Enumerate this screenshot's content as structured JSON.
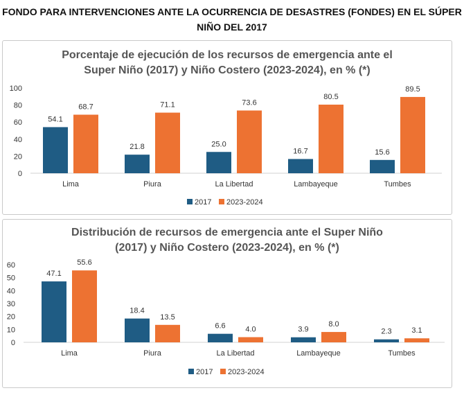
{
  "header": {
    "title_line1": "FONDO PARA INTERVENCIONES ANTE LA OCURRENCIA DE DESASTRES (FONDES) EN EL SÚPER",
    "title_line2": "NIÑO DEL 2017"
  },
  "colors": {
    "series_2017": "#1f5c84",
    "series_2023_2024": "#ed7232"
  },
  "chart_data": [
    {
      "type": "bar",
      "title_line1": "Porcentaje de ejecución de los recursos de emergencia ante el",
      "title_line2": "Super Niño (2017) y Niño Costero (2023-2024), en % (*)",
      "categories": [
        "Lima",
        "Piura",
        "La Libertad",
        "Lambayeque",
        "Tumbes"
      ],
      "series": [
        {
          "name": "2017",
          "values": [
            54.1,
            21.8,
            25.0,
            16.7,
            15.6
          ],
          "labels": [
            "54.1",
            "21.8",
            "25.0",
            "16.7",
            "15.6"
          ]
        },
        {
          "name": "2023-2024",
          "values": [
            68.7,
            71.1,
            73.6,
            80.5,
            89.5
          ],
          "labels": [
            "68.7",
            "71.1",
            "73.6",
            "80.5",
            "89.5"
          ]
        }
      ],
      "yticks": [
        0,
        20,
        40,
        60,
        80,
        100
      ],
      "ylim": [
        0,
        100
      ],
      "legend": "bottom",
      "grid": false
    },
    {
      "type": "bar",
      "title_line1": "Distribución de recursos de emergencia ante el Super Niño",
      "title_line2": "(2017) y Niño Costero (2023-2024), en % (*)",
      "categories": [
        "Lima",
        "Piura",
        "La Libertad",
        "Lambayeque",
        "Tumbes"
      ],
      "series": [
        {
          "name": "2017",
          "values": [
            47.1,
            18.4,
            6.6,
            3.9,
            2.3
          ],
          "labels": [
            "47.1",
            "18.4",
            "6.6",
            "3.9",
            "2.3"
          ]
        },
        {
          "name": "2023-2024",
          "values": [
            55.6,
            13.5,
            4.0,
            8.0,
            3.1
          ],
          "labels": [
            "55.6",
            "13.5",
            "4.0",
            "8.0",
            "3.1"
          ]
        }
      ],
      "yticks": [
        0,
        10,
        20,
        30,
        40,
        50,
        60
      ],
      "ylim": [
        0,
        60
      ],
      "legend": "bottom",
      "grid": false
    }
  ]
}
